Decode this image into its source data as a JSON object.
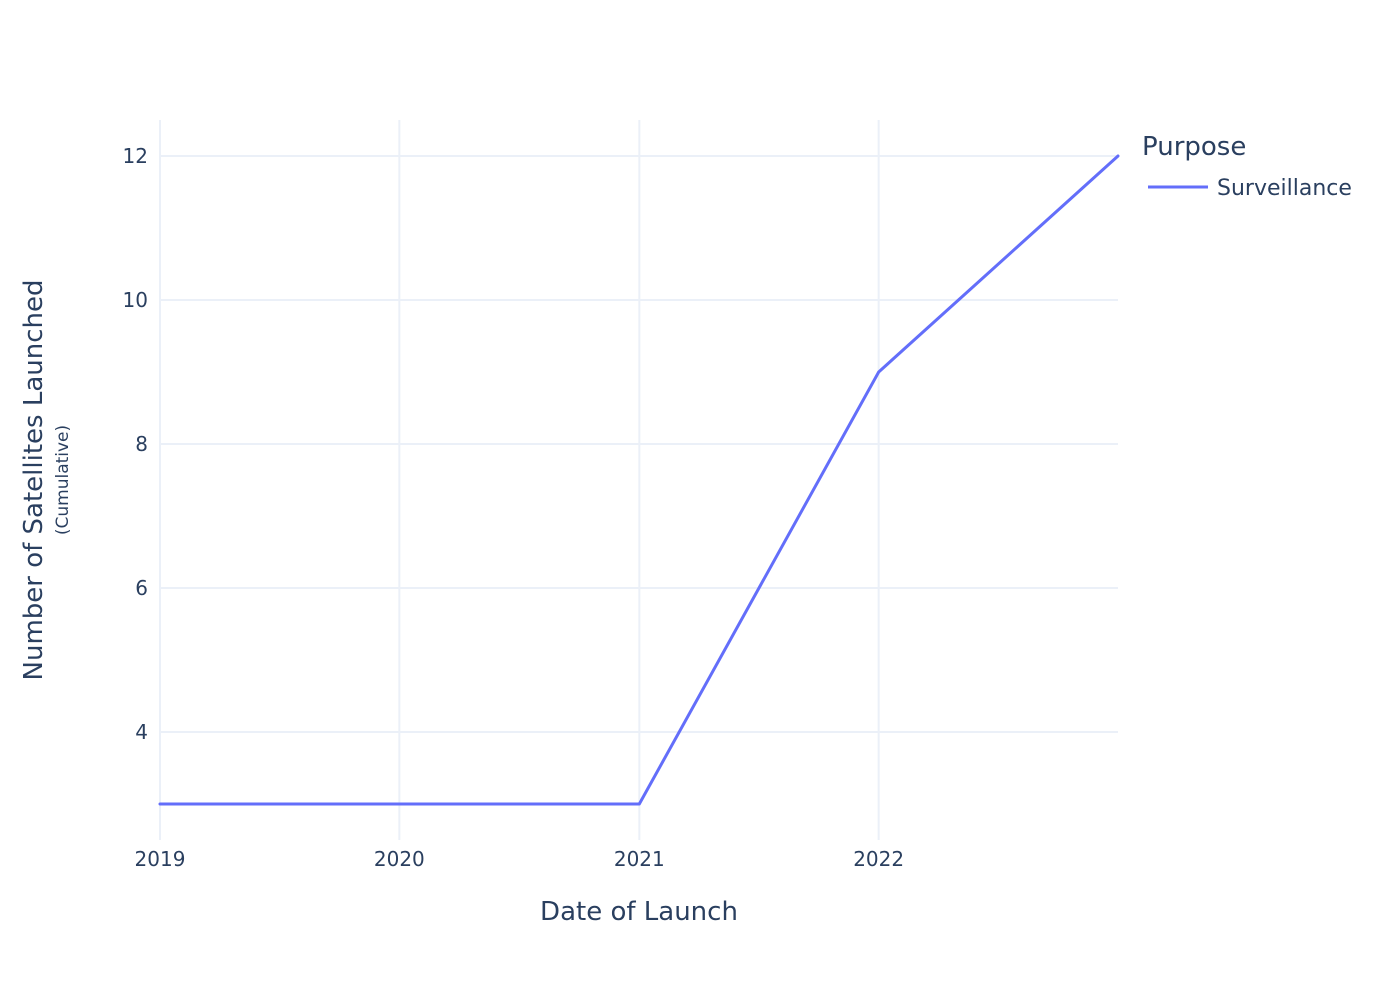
{
  "chart_data": {
    "type": "line",
    "xlabel": "Date of Launch",
    "ylabel": "Number of Satellites Launched",
    "ylabel_sub": "(Cumulative)",
    "x_ticks": [
      "2019",
      "2020",
      "2021",
      "2022"
    ],
    "y_ticks": [
      4,
      6,
      8,
      10,
      12
    ],
    "xlim": [
      "2019-01-01",
      "2023-01-01"
    ],
    "ylim": [
      2.5,
      12.5
    ],
    "grid": true,
    "legend": {
      "title": "Purpose",
      "placement": "top-right"
    },
    "series": [
      {
        "name": "Surveillance",
        "color": "#636efa",
        "x": [
          "2019-01-01",
          "2020-01-01",
          "2021-01-01",
          "2022-01-01",
          "2023-01-01"
        ],
        "y": [
          3,
          3,
          3,
          9,
          12
        ]
      }
    ]
  }
}
